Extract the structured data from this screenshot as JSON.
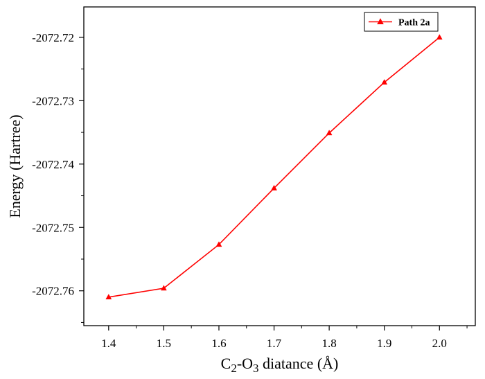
{
  "chart_data": {
    "type": "line",
    "title": "",
    "xlabel": {
      "main": "C",
      "sub1": "2",
      "mid": "-O",
      "sub2": "3",
      "rest": " diatance (Å)"
    },
    "ylabel": "Energy (Hartree)",
    "x_ticks": [
      "1.4",
      "1.5",
      "1.6",
      "1.7",
      "1.8",
      "1.9",
      "2.0"
    ],
    "y_ticks": [
      "-2072.72",
      "-2072.73",
      "-2072.74",
      "-2072.75",
      "-2072.76"
    ],
    "xlim": [
      1.355,
      2.065
    ],
    "ylim": [
      -2072.7655,
      -2072.7152
    ],
    "grid": false,
    "legend_position": "top-right",
    "series": [
      {
        "name": "Path 2a",
        "color": "#ff0000",
        "marker": "triangle-up",
        "x": [
          1.4,
          1.5,
          1.6,
          1.7,
          1.8,
          1.9,
          2.0
        ],
        "y": [
          -2072.761,
          -2072.7596,
          -2072.7527,
          -2072.7438,
          -2072.7351,
          -2072.7271,
          -2072.72
        ]
      }
    ]
  }
}
